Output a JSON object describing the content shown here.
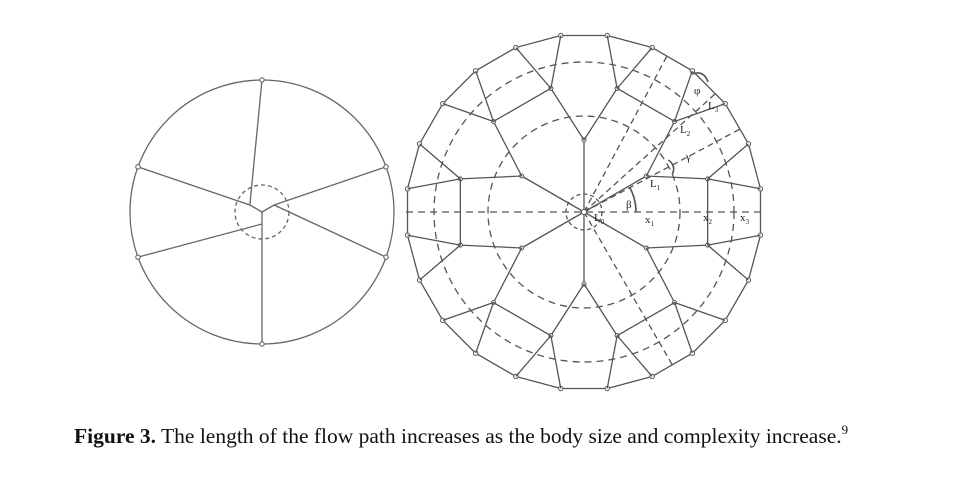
{
  "figure": {
    "caption_label": "Figure 3.",
    "caption_text": "The length of the flow path increases as the body size and complexity increase.",
    "caption_ref": "9",
    "labels": {
      "phi": "φ",
      "L3": "L3",
      "L2": "L2",
      "gamma": "γ",
      "L1": "L1",
      "beta": "β",
      "L0": "L0",
      "x1": "x1",
      "x2": "x2",
      "x3": "x3"
    }
  }
}
